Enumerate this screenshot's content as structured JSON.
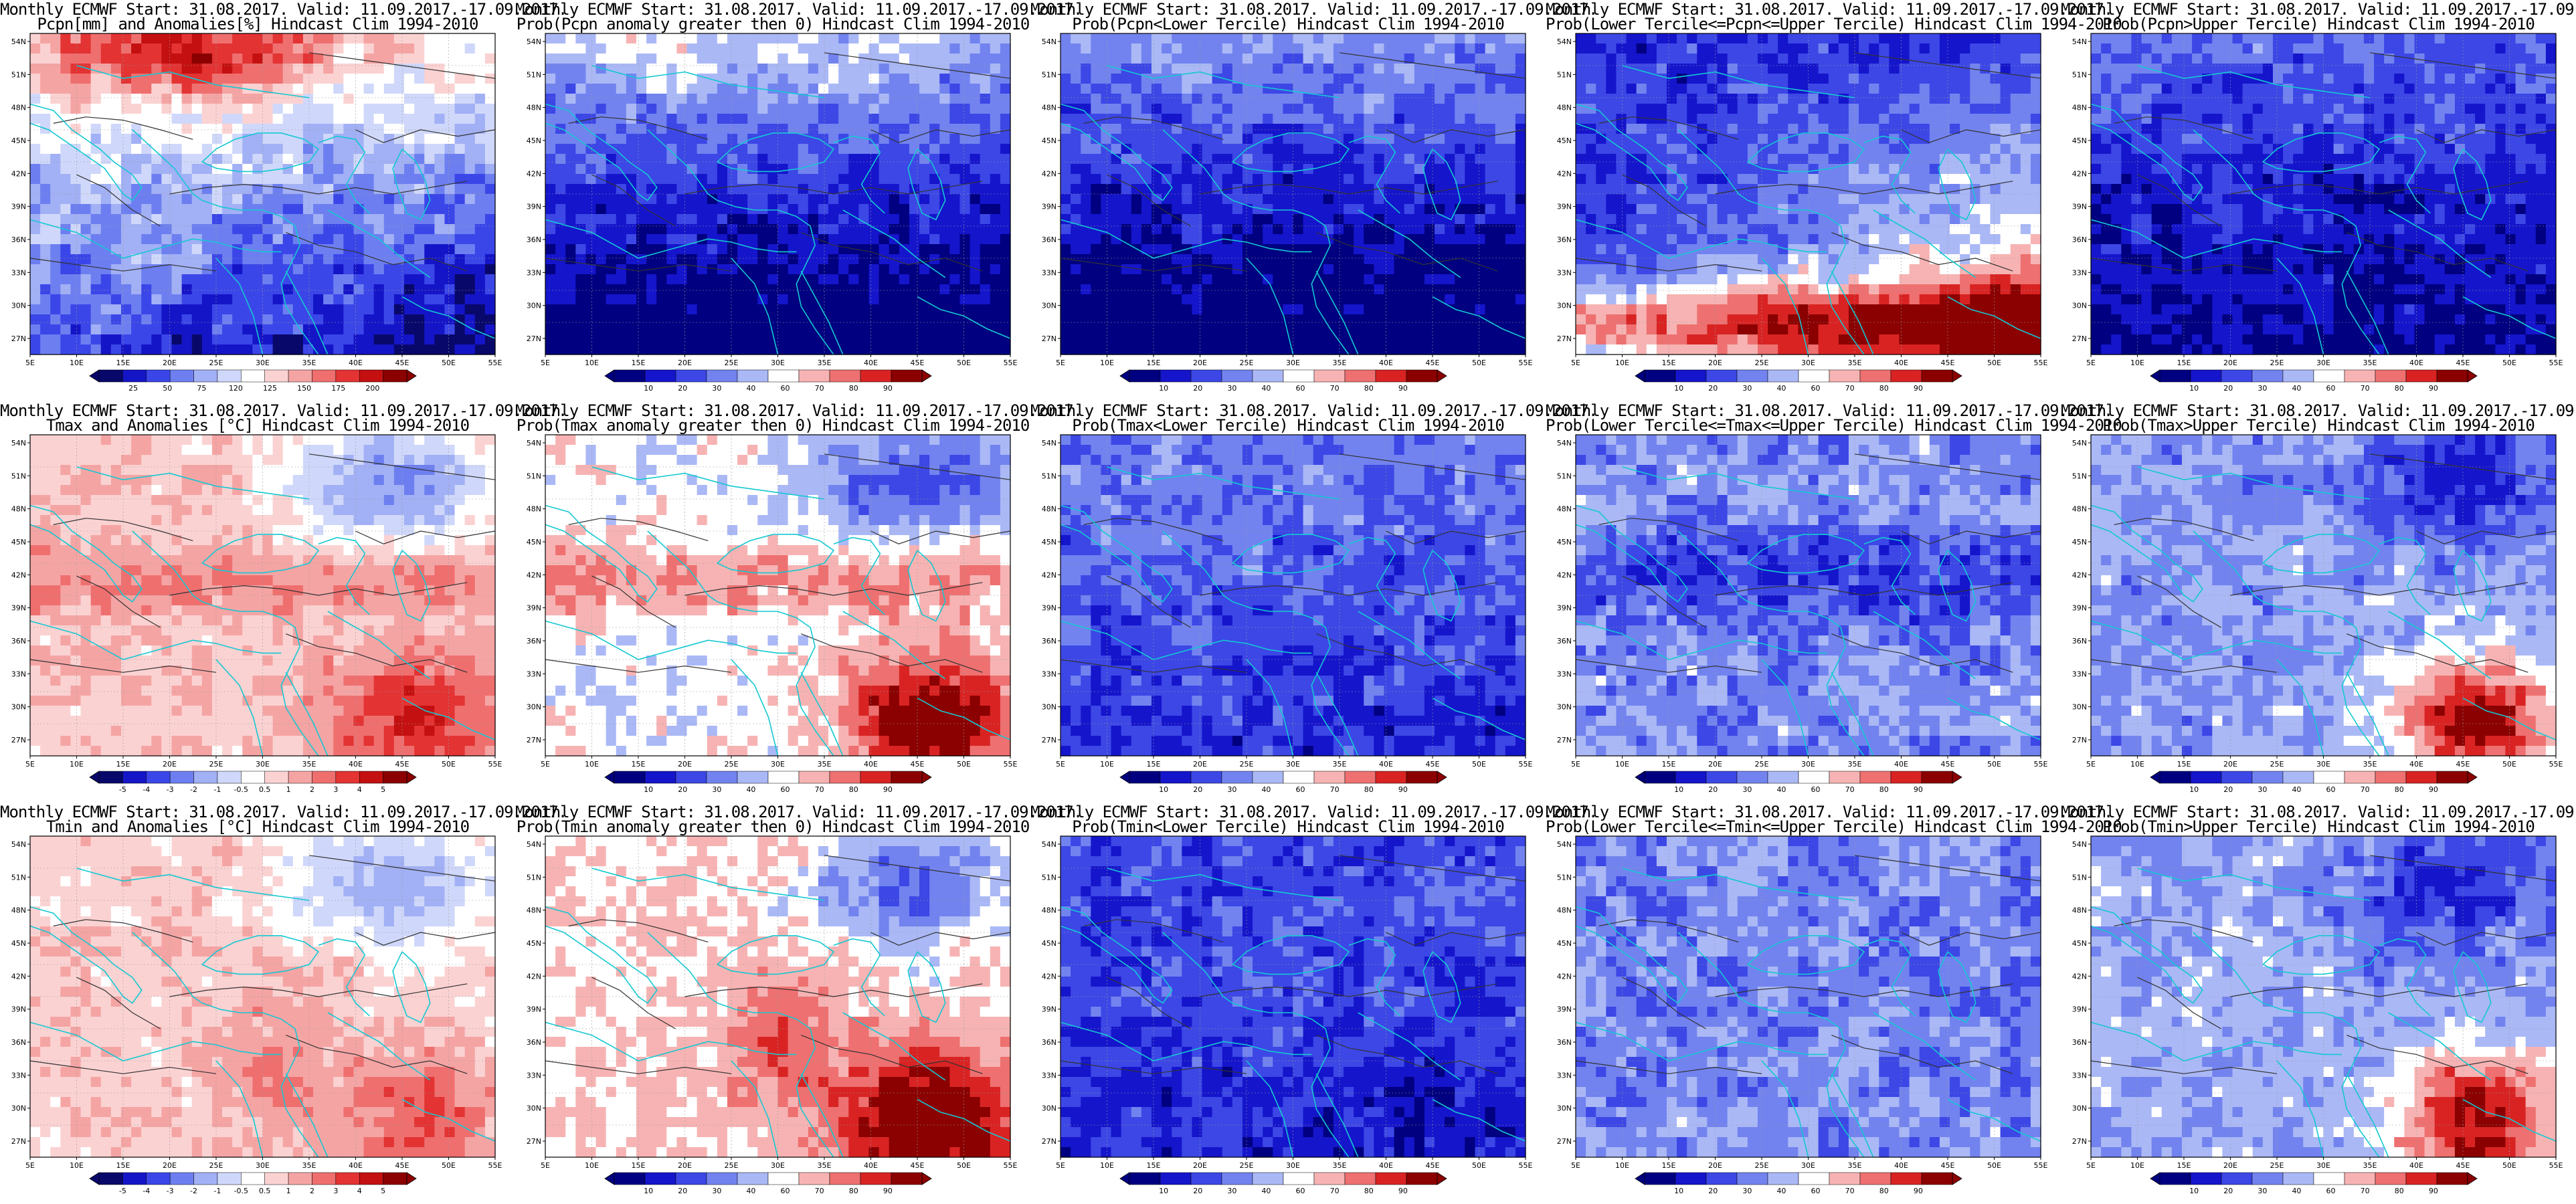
{
  "header": "Monthly ECMWF Start: 31.08.2017. Valid: 11.09.2017.-17.09.2017.",
  "lat_ticks": [
    "54N",
    "51N",
    "48N",
    "45N",
    "42N",
    "39N",
    "36N",
    "33N",
    "30N",
    "27N"
  ],
  "lon_ticks": [
    "5E",
    "10E",
    "15E",
    "20E",
    "25E",
    "30E",
    "35E",
    "40E",
    "45E",
    "50E",
    "55E"
  ],
  "colors": {
    "anom_scale": [
      "#08086b",
      "#1515c8",
      "#3b46e8",
      "#6d7ff0",
      "#a2b0f5",
      "#cfd8fa",
      "#ffffff",
      "#fbd2d2",
      "#f5a4a4",
      "#ef6f6f",
      "#e33333",
      "#c41010",
      "#8b0000"
    ],
    "prob_scale": [
      "#000080",
      "#1515cc",
      "#3c47e6",
      "#7283ef",
      "#aab8f6",
      "#ffffff",
      "#f7b3b3",
      "#ee7070",
      "#d92323",
      "#8b0000"
    ],
    "coast": "#14c8d2",
    "contour": "#333333"
  },
  "panels": [
    {
      "title": "Pcpn[mm] and Anomalies[%] Hindcast Clim 1994-2010",
      "colorbar": [
        "25",
        "50",
        "75",
        "120",
        "125",
        "150",
        "175",
        "200"
      ],
      "pattern": "pcpn-anom"
    },
    {
      "title": "Prob(Pcpn anomaly greater then 0) Hindcast Clim 1994-2010",
      "colorbar": [
        "10",
        "20",
        "30",
        "40",
        "60",
        "70",
        "80",
        "90"
      ],
      "pattern": "pcpn-pos"
    },
    {
      "title": "Prob(Pcpn<Lower Tercile) Hindcast Clim 1994-2010",
      "colorbar": [
        "10",
        "20",
        "30",
        "40",
        "60",
        "70",
        "80",
        "90"
      ],
      "pattern": "pcpn-lower"
    },
    {
      "title": "Prob(Lower Tercile<=Pcpn<=Upper Tercile) Hindcast Clim 1994-2010",
      "colorbar": [
        "10",
        "20",
        "30",
        "40",
        "60",
        "70",
        "80",
        "90"
      ],
      "pattern": "pcpn-mid"
    },
    {
      "title": "Prob(Pcpn>Upper Tercile) Hindcast Clim 1994-2010",
      "colorbar": [
        "10",
        "20",
        "30",
        "40",
        "60",
        "70",
        "80",
        "90"
      ],
      "pattern": "pcpn-upper"
    },
    {
      "title": "Tmax and Anomalies [°C] Hindcast Clim 1994-2010",
      "colorbar": [
        "-5",
        "-4",
        "-3",
        "-2",
        "-1",
        "-0.5",
        "0.5",
        "1",
        "2",
        "3",
        "4",
        "5"
      ],
      "pattern": "tmax-anom"
    },
    {
      "title": "Prob(Tmax anomaly greater then 0) Hindcast Clim 1994-2010",
      "colorbar": [
        "10",
        "20",
        "30",
        "40",
        "60",
        "70",
        "80",
        "90"
      ],
      "pattern": "tmax-pos"
    },
    {
      "title": "Prob(Tmax<Lower Tercile) Hindcast Clim 1994-2010",
      "colorbar": [
        "10",
        "20",
        "30",
        "40",
        "60",
        "70",
        "80",
        "90"
      ],
      "pattern": "tmax-lower"
    },
    {
      "title": "Prob(Lower Tercile<=Tmax<=Upper Tercile) Hindcast Clim 1994-2010",
      "colorbar": [
        "10",
        "20",
        "30",
        "40",
        "60",
        "70",
        "80",
        "90"
      ],
      "pattern": "tmax-mid"
    },
    {
      "title": "Prob(Tmax>Upper Tercile) Hindcast Clim 1994-2010",
      "colorbar": [
        "10",
        "20",
        "30",
        "40",
        "60",
        "70",
        "80",
        "90"
      ],
      "pattern": "tmax-upper"
    },
    {
      "title": "Tmin and Anomalies [°C] Hindcast Clim 1994-2010",
      "colorbar": [
        "-5",
        "-4",
        "-3",
        "-2",
        "-1",
        "-0.5",
        "0.5",
        "1",
        "2",
        "3",
        "4",
        "5"
      ],
      "pattern": "tmin-anom"
    },
    {
      "title": "Prob(Tmin anomaly greater then 0) Hindcast Clim 1994-2010",
      "colorbar": [
        "10",
        "20",
        "30",
        "40",
        "60",
        "70",
        "80",
        "90"
      ],
      "pattern": "tmin-pos"
    },
    {
      "title": "Prob(Tmin<Lower Tercile) Hindcast Clim 1994-2010",
      "colorbar": [
        "10",
        "20",
        "30",
        "40",
        "60",
        "70",
        "80",
        "90"
      ],
      "pattern": "tmin-lower"
    },
    {
      "title": "Prob(Lower Tercile<=Tmin<=Upper Tercile) Hindcast Clim 1994-2010",
      "colorbar": [
        "10",
        "20",
        "30",
        "40",
        "60",
        "70",
        "80",
        "90"
      ],
      "pattern": "tmin-mid"
    },
    {
      "title": "Prob(Tmin>Upper Tercile) Hindcast Clim 1994-2010",
      "colorbar": [
        "10",
        "20",
        "30",
        "40",
        "60",
        "70",
        "80",
        "90"
      ],
      "pattern": "tmin-upper"
    }
  ]
}
